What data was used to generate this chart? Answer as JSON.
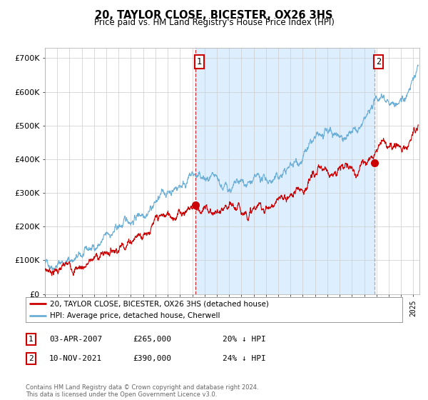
{
  "title": "20, TAYLOR CLOSE, BICESTER, OX26 3HS",
  "subtitle": "Price paid vs. HM Land Registry's House Price Index (HPI)",
  "ylim": [
    0,
    730000
  ],
  "xlim_start": 1995.0,
  "xlim_end": 2025.5,
  "hpi_color": "#6baed6",
  "price_color": "#cc0000",
  "fill_color": "#ddeeff",
  "marker1_date": 2007.25,
  "marker1_price": 265000,
  "marker2_date": 2021.86,
  "marker2_price": 390000,
  "legend_line1": "20, TAYLOR CLOSE, BICESTER, OX26 3HS (detached house)",
  "legend_line2": "HPI: Average price, detached house, Cherwell",
  "table_row1": [
    "1",
    "03-APR-2007",
    "£265,000",
    "20% ↓ HPI"
  ],
  "table_row2": [
    "2",
    "10-NOV-2021",
    "£390,000",
    "24% ↓ HPI"
  ],
  "footer": "Contains HM Land Registry data © Crown copyright and database right 2024.\nThis data is licensed under the Open Government Licence v3.0.",
  "background_color": "#ffffff",
  "grid_color": "#cccccc"
}
